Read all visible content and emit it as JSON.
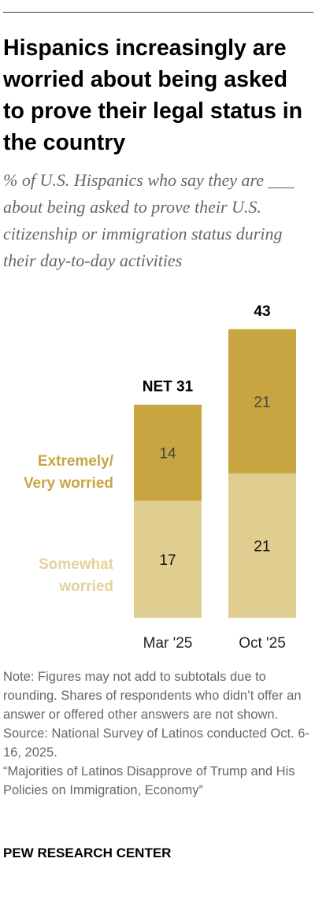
{
  "title": "Hispanics increasingly are worried about being asked to prove their legal status in the country",
  "subtitle": "% of U.S. Hispanics who say they are ___ about being asked to prove their U.S. citizenship or immigration status during their day-to-day activities",
  "legend": {
    "extremely_line1": "Extremely/",
    "extremely_line2": "Very worried",
    "somewhat_line1": "Somewhat",
    "somewhat_line2": "worried"
  },
  "colors": {
    "extremely": "#c9a542",
    "somewhat": "#e0cd90",
    "extremely_label": "#c9a542",
    "somewhat_label": "#e3d29c"
  },
  "chart_data": {
    "type": "bar",
    "stacked": true,
    "categories": [
      "Mar '25",
      "Oct '25"
    ],
    "series": [
      {
        "name": "Somewhat worried",
        "values": [
          17,
          21
        ]
      },
      {
        "name": "Extremely/Very worried",
        "values": [
          14,
          21
        ]
      }
    ],
    "totals": [
      31,
      43
    ],
    "total_labels": [
      "NET 31",
      "43"
    ],
    "ylim": [
      0,
      43
    ]
  },
  "notes": {
    "note": "Note: Figures may not add to subtotals due to rounding. Shares of respondents who didn’t offer an answer or offered other answers are not shown.",
    "source": "Source: National Survey of Latinos conducted Oct. 6-16, 2025.",
    "report": "“Majorities of Latinos Disapprove of Trump and His Policies on Immigration, Economy”"
  },
  "brand": "PEW RESEARCH CENTER"
}
